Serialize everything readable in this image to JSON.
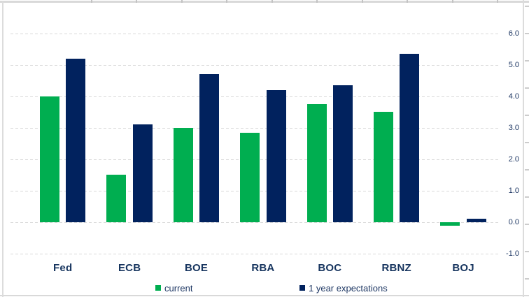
{
  "chart_data": {
    "type": "bar",
    "title": "",
    "categories": [
      "Fed",
      "ECB",
      "BOE",
      "RBA",
      "BOC",
      "RBNZ",
      "BOJ"
    ],
    "series": [
      {
        "name": "current",
        "color": "#00ae50",
        "values": [
          4.0,
          1.5,
          3.0,
          2.85,
          3.75,
          3.5,
          -0.1
        ]
      },
      {
        "name": "1 year expectations",
        "color": "#01225e",
        "values": [
          5.2,
          3.1,
          4.7,
          4.2,
          4.35,
          5.35,
          0.1
        ]
      }
    ],
    "xlabel": "",
    "ylabel": "",
    "ylim": [
      -1.0,
      6.0
    ],
    "yticks": [
      6.0,
      5.0,
      4.0,
      3.0,
      2.0,
      1.0,
      0.0,
      -1.0
    ],
    "ytick_labels": [
      "6.0",
      "5.0",
      "4.0",
      "3.0",
      "2.0",
      "1.0",
      "0.0",
      "-1.0"
    ],
    "grid": "horizontal-dashed",
    "legend_position": "bottom",
    "value_axis_side": "right"
  },
  "colors": {
    "series_current": "#00ae50",
    "series_expectations": "#01225e",
    "axis_text": "#1f3864",
    "category_text": "#17355f",
    "gridline": "#d9d9d9",
    "frame": "#d9d9d9",
    "background": "#ffffff"
  }
}
